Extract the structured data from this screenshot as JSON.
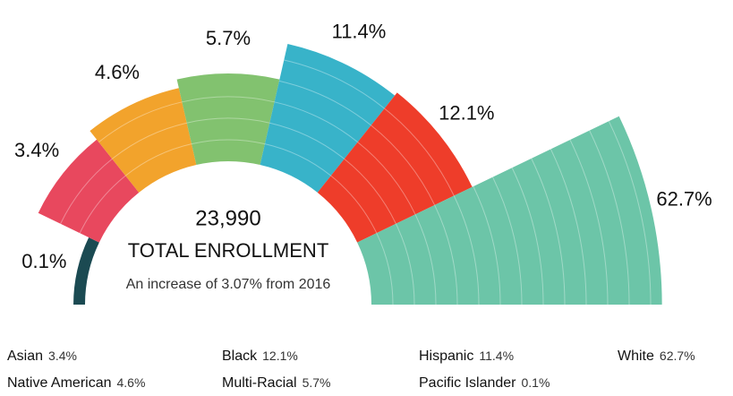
{
  "chart_data": {
    "type": "radial-bar",
    "categories": [
      "Pacific Islander",
      "Asian",
      "Native American",
      "Multi-Racial",
      "Hispanic",
      "Black",
      "White"
    ],
    "values": [
      0.1,
      3.4,
      4.6,
      5.7,
      11.4,
      12.1,
      62.7
    ],
    "value_labels": [
      "0.1%",
      "3.4%",
      "4.6%",
      "5.7%",
      "11.4%",
      "12.1%",
      "62.7%"
    ],
    "colors": [
      "#1b4a52",
      "#e8485e",
      "#f2a32c",
      "#82c26f",
      "#38b3c9",
      "#ee3d2a",
      "#6cc5a8"
    ],
    "annotations": [
      "23,990",
      "TOTAL ENROLLMENT",
      "An increase of 3.07% from 2016"
    ]
  }
}
